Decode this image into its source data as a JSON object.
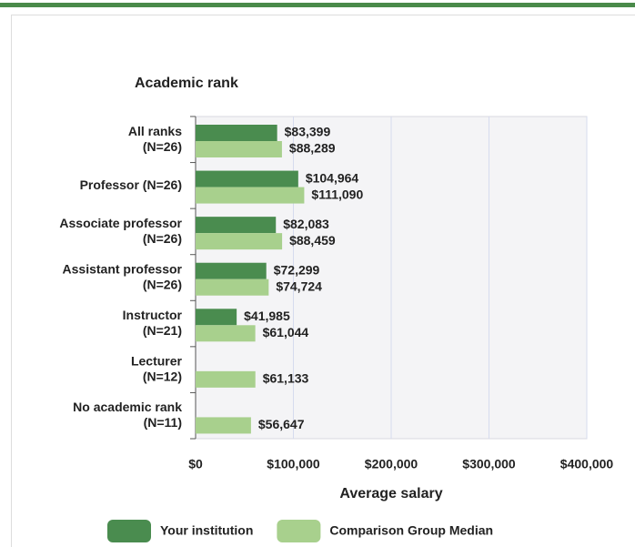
{
  "chart_data": {
    "type": "bar",
    "orientation": "horizontal",
    "title": "Academic rank",
    "categories": [
      "All ranks\n(N=26)",
      "Professor (N=26)",
      "Associate professor\n(N=26)",
      "Assistant professor\n(N=26)",
      "Instructor\n(N=21)",
      "Lecturer\n(N=12)",
      "No academic rank\n(N=11)"
    ],
    "series": [
      {
        "name": "Your institution",
        "color": "#4a8c4f",
        "values": [
          83399,
          104964,
          82083,
          72299,
          41985,
          null,
          null
        ],
        "value_labels": [
          "$83,399",
          "$104,964",
          "$82,083",
          "$72,299",
          "$41,985",
          null,
          null
        ]
      },
      {
        "name": "Comparison Group Median",
        "color": "#a8d08d",
        "values": [
          88289,
          111090,
          88459,
          74724,
          61044,
          61133,
          56647
        ],
        "value_labels": [
          "$88,289",
          "$111,090",
          "$88,459",
          "$74,724",
          "$61,044",
          "$61,133",
          "$56,647"
        ]
      }
    ],
    "xlabel": "Average salary",
    "xlim": [
      0,
      400000
    ],
    "xticks": [
      {
        "value": 0,
        "label": "$0"
      },
      {
        "value": 100000,
        "label": "$100,000"
      },
      {
        "value": 200000,
        "label": "$200,000"
      },
      {
        "value": 300000,
        "label": "$300,000"
      },
      {
        "value": 400000,
        "label": "$400,000"
      }
    ],
    "grid": true,
    "legend": "bottom"
  }
}
